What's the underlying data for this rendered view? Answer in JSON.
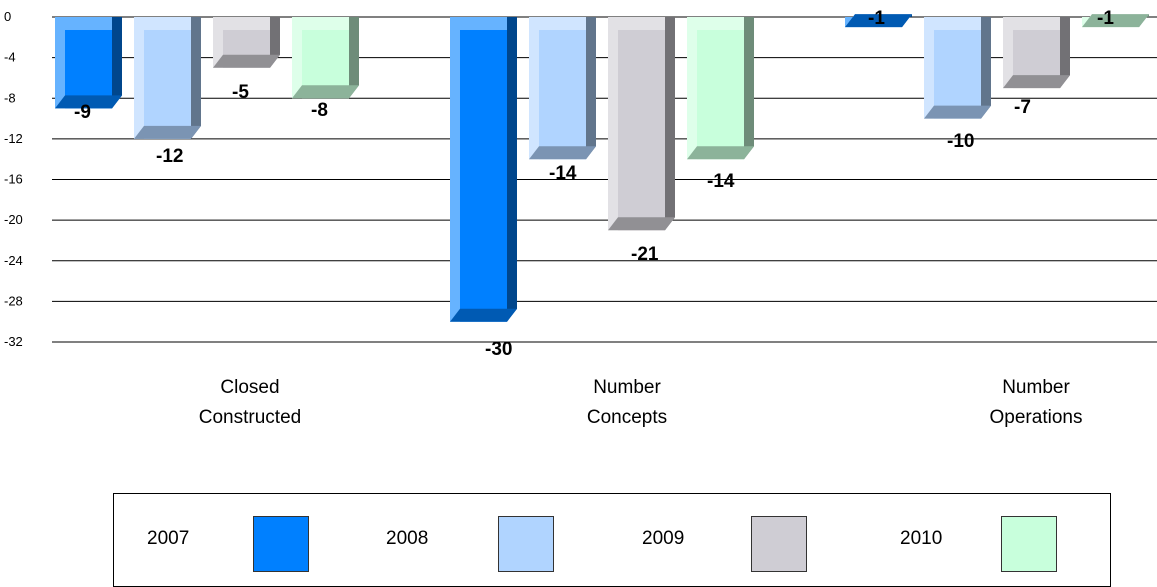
{
  "chart_data": {
    "type": "bar",
    "categories": [
      "Closed Constructed",
      "Number Concepts",
      "Number Operations"
    ],
    "category_label_lines": [
      [
        "Closed",
        "Constructed"
      ],
      [
        "Number",
        "Concepts"
      ],
      [
        "Number",
        "Operations"
      ]
    ],
    "series": [
      {
        "name": "2007",
        "values": [
          -9,
          -30,
          -1
        ],
        "color": "#0080FF"
      },
      {
        "name": "2008",
        "values": [
          -12,
          -14,
          -10
        ],
        "color": "#B0D4FF"
      },
      {
        "name": "2009",
        "values": [
          -5,
          -21,
          -7
        ],
        "color": "#CFCDD4"
      },
      {
        "name": "2010",
        "values": [
          -8,
          -14,
          -1
        ],
        "color": "#C8FFDC"
      }
    ],
    "data_labels": [
      [
        "-9",
        "-12",
        "-5",
        "-8"
      ],
      [
        "-30",
        "-14",
        "-21",
        "-14"
      ],
      [
        "-1",
        "-10",
        "-7",
        "-1"
      ]
    ],
    "yticks": [
      "0",
      "-4",
      "-8",
      "-12",
      "-16",
      "-20",
      "-24",
      "-28",
      "-32"
    ],
    "ylim": [
      -32,
      0
    ],
    "grid": true,
    "legend_placement": "bottom",
    "title": "",
    "xlabel": "",
    "ylabel": ""
  },
  "legend": {
    "items": [
      {
        "label": "2007",
        "color": "#0080FF"
      },
      {
        "label": "2008",
        "color": "#B0D4FF"
      },
      {
        "label": "2009",
        "color": "#CFCDD4"
      },
      {
        "label": "2010",
        "color": "#C8FFDC"
      }
    ]
  }
}
